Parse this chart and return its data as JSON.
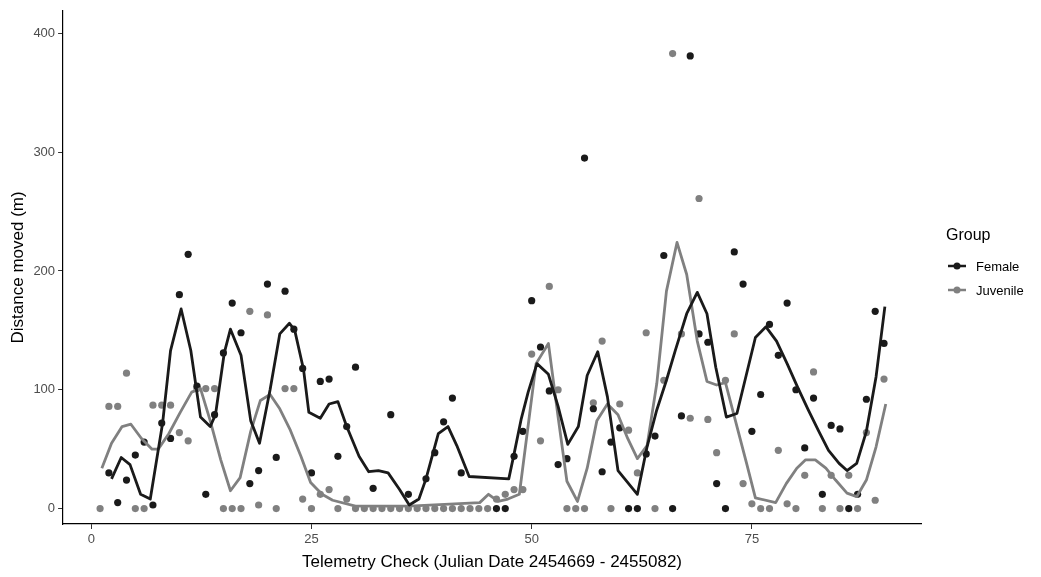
{
  "chart_data": {
    "type": "scatter",
    "xlabel": "Telemetry Check (Julian Date 2454669 - 2455082)",
    "ylabel": "Distance moved (m)",
    "legend_title": "Group",
    "legend": "right",
    "grid": false,
    "xlim": [
      -3.2,
      94.2
    ],
    "ylim": [
      -13,
      419
    ],
    "xticks": [
      0,
      25,
      50,
      75
    ],
    "yticks": [
      0,
      100,
      200,
      300,
      400
    ],
    "series": [
      {
        "name": "Female",
        "marker": "circle",
        "color": "#1a1a1a",
        "x": [
          2,
          3,
          4,
          5,
          6,
          7,
          8,
          9,
          10,
          11,
          12,
          13,
          14,
          15,
          16,
          17,
          18,
          19,
          20,
          21,
          22,
          23,
          24,
          25,
          26,
          27,
          28,
          29,
          30,
          31,
          32,
          33,
          34,
          35,
          36,
          37,
          38,
          39,
          40,
          41,
          42,
          43,
          44,
          45,
          46,
          47,
          48,
          49,
          50,
          51,
          52,
          53,
          54,
          55,
          56,
          57,
          58,
          59,
          60,
          61,
          62,
          63,
          64,
          65,
          66,
          67,
          68,
          69,
          70,
          71,
          72,
          73,
          74,
          75,
          76,
          77,
          78,
          79,
          80,
          81,
          82,
          83,
          84,
          85,
          86,
          87,
          88,
          89,
          90
        ],
        "values": [
          30,
          5,
          24,
          45,
          56,
          3,
          72,
          59,
          180,
          214,
          103,
          12,
          79,
          131,
          173,
          148,
          21,
          32,
          189,
          43,
          183,
          151,
          118,
          30,
          107,
          109,
          44,
          69,
          119,
          null,
          17,
          null,
          79,
          null,
          12,
          null,
          25,
          47,
          73,
          93,
          30,
          null,
          null,
          null,
          0,
          0,
          44,
          65,
          175,
          136,
          99,
          37,
          42,
          null,
          295,
          84,
          31,
          56,
          68,
          0,
          0,
          46,
          61,
          213,
          0,
          78,
          381,
          147,
          140,
          21,
          0,
          216,
          189,
          65,
          96,
          155,
          129,
          173,
          100,
          51,
          93,
          12,
          70,
          67,
          0,
          12,
          92,
          166,
          139
        ]
      },
      {
        "name": "Juvenile",
        "marker": "circle",
        "color": "#808080",
        "x": [
          1,
          2,
          3,
          4,
          5,
          6,
          7,
          8,
          9,
          10,
          11,
          12,
          13,
          14,
          15,
          16,
          17,
          18,
          19,
          20,
          21,
          22,
          23,
          24,
          25,
          26,
          27,
          28,
          29,
          30,
          31,
          32,
          33,
          34,
          35,
          36,
          37,
          38,
          39,
          40,
          41,
          42,
          43,
          44,
          45,
          46,
          47,
          48,
          49,
          50,
          51,
          52,
          53,
          54,
          55,
          56,
          57,
          58,
          59,
          60,
          61,
          62,
          63,
          64,
          65,
          66,
          67,
          68,
          69,
          70,
          71,
          72,
          73,
          74,
          75,
          76,
          77,
          78,
          79,
          80,
          81,
          82,
          83,
          84,
          85,
          86,
          87,
          88,
          89,
          90
        ],
        "values": [
          0,
          86,
          86,
          114,
          0,
          0,
          87,
          87,
          87,
          64,
          57,
          101,
          101,
          101,
          0,
          0,
          0,
          166,
          3,
          163,
          0,
          101,
          101,
          8,
          0,
          12,
          16,
          0,
          8,
          0,
          0,
          0,
          0,
          0,
          0,
          0,
          0,
          0,
          0,
          0,
          0,
          0,
          0,
          0,
          0,
          8,
          12,
          16,
          16,
          130,
          57,
          187,
          100,
          0,
          0,
          0,
          89,
          141,
          0,
          88,
          66,
          30,
          148,
          0,
          108,
          383,
          147,
          76,
          261,
          75,
          47,
          108,
          147,
          21,
          4,
          0,
          0,
          49,
          4,
          0,
          28,
          115,
          0,
          28,
          0,
          28,
          0,
          64,
          7,
          109
        ]
      },
      {
        "type": "line",
        "marker": "none",
        "color": "#1a1a1a",
        "x": [
          2.3,
          3.4,
          4.4,
          5.6,
          6.7,
          8.1,
          9,
          10.2,
          11.3,
          12.4,
          13.5,
          14.1,
          15.1,
          15.8,
          17,
          18.1,
          19.1,
          20.3,
          21.4,
          22.5,
          23.1,
          24.1,
          24.7,
          26,
          27,
          28,
          29,
          30.4,
          31.5,
          32.6,
          33.7,
          35,
          36.1,
          37.2,
          38,
          39.4,
          40.5,
          41.5,
          42.9,
          47.4,
          48,
          48.8,
          49.6,
          50.6,
          51.9,
          53,
          54.1,
          55.3,
          56.3,
          57.5,
          58.6,
          59.8,
          62,
          63.1,
          64.2,
          65.3,
          66.3,
          67.6,
          68.8,
          69.9,
          70.9,
          72.1,
          73.3,
          75.4,
          76.6,
          77.8,
          79,
          80.2,
          81.4,
          82.6,
          83.7,
          84.9,
          85.8,
          86.9,
          88,
          89.1,
          90.1
        ],
        "values": [
          25,
          43,
          37,
          12,
          8,
          72,
          133,
          168,
          133,
          77,
          69,
          79,
          131,
          151,
          129,
          74,
          55,
          100,
          147,
          156,
          150,
          117,
          81,
          76,
          88,
          90,
          69,
          44,
          31,
          32,
          30,
          16,
          3,
          8,
          25,
          63,
          69,
          53,
          27,
          25,
          46,
          75,
          98,
          122,
          113,
          86,
          54,
          69,
          112,
          132,
          94,
          32,
          12,
          52,
          83,
          108,
          133,
          164,
          182,
          164,
          119,
          77,
          80,
          144,
          153,
          141,
          122,
          102,
          83,
          65,
          49,
          38,
          32,
          38,
          65,
          111,
          170
        ]
      },
      {
        "type": "line",
        "marker": "none",
        "color": "#808080",
        "x": [
          1.2,
          2.3,
          3.5,
          4.5,
          5.7,
          6.9,
          7.6,
          8.8,
          10.1,
          11.4,
          12.4,
          13.5,
          14.7,
          15.8,
          16.9,
          18.1,
          19.2,
          20.3,
          21.4,
          22.6,
          23.8,
          24.9,
          26.2,
          27.4,
          30,
          36.1,
          44.1,
          45.1,
          46.2,
          47.3,
          48.6,
          50.5,
          51.9,
          53,
          54,
          55.2,
          56.3,
          57.4,
          58.6,
          59.8,
          60.9,
          62,
          63.1,
          64.2,
          65.3,
          66.5,
          67.6,
          68.8,
          69.9,
          71,
          72,
          74.4,
          75.4,
          77.7,
          78.9,
          80.1,
          81.1,
          82.2,
          83.4,
          84.5,
          85.8,
          86.9,
          88,
          89.1,
          90.2
        ],
        "values": [
          34,
          55,
          69,
          71,
          59,
          50,
          50,
          63,
          81,
          98,
          101,
          74,
          41,
          15,
          26,
          65,
          91,
          96,
          84,
          66,
          44,
          22,
          12,
          7,
          2,
          2,
          5,
          12,
          6,
          8,
          12,
          122,
          139,
          77,
          23,
          6,
          34,
          74,
          88,
          79,
          59,
          42,
          53,
          105,
          183,
          224,
          197,
          141,
          107,
          104,
          106,
          38,
          9,
          5,
          21,
          34,
          41,
          41,
          34,
          24,
          13,
          10,
          24,
          52,
          88
        ]
      }
    ]
  }
}
